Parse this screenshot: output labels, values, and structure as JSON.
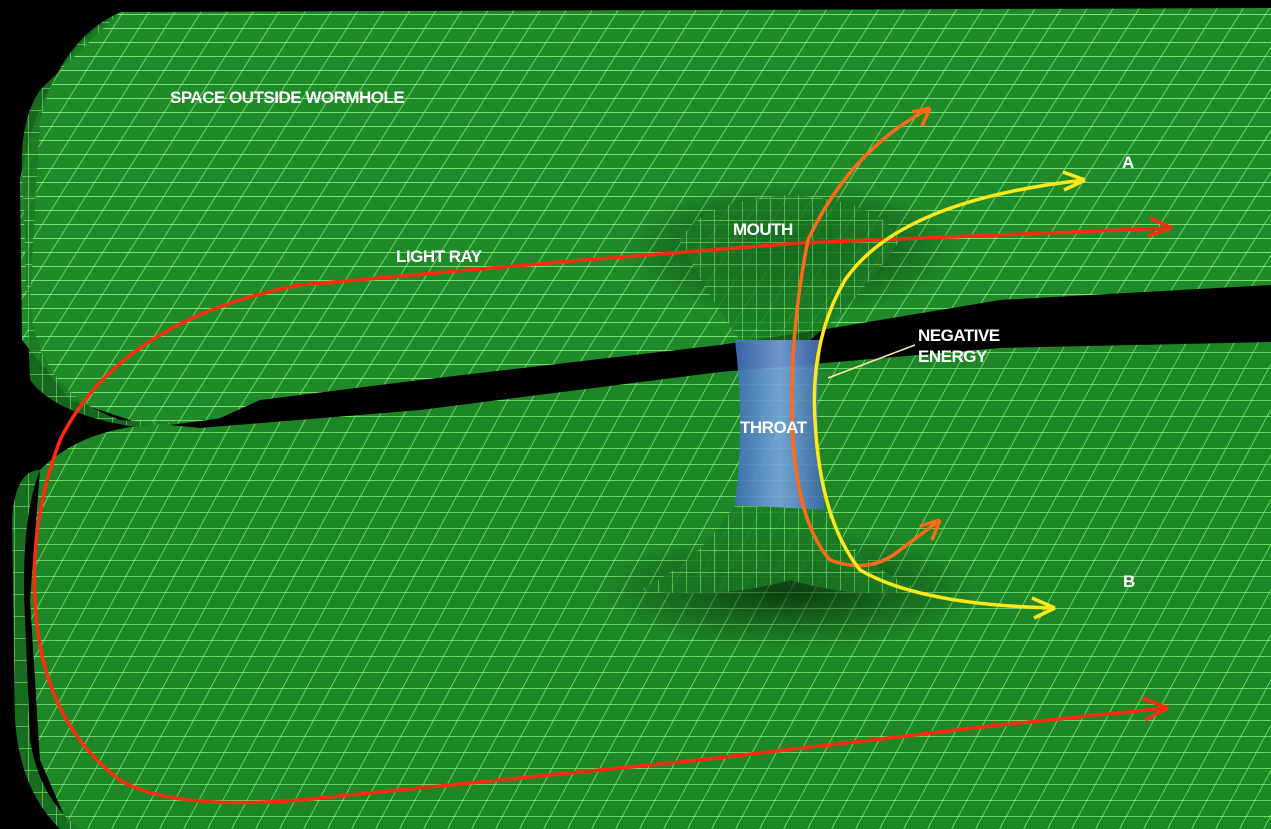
{
  "labels": {
    "space_outside": "SPACE OUTSIDE WORMHOLE",
    "light_ray": "LIGHT RAY",
    "mouth": "MOUTH",
    "negative_line1": "NEGATIVE",
    "negative_line2": "ENERGY",
    "throat": "THROAT",
    "point_a": "A",
    "point_b": "B"
  },
  "colors": {
    "background": "#000000",
    "sheet_fill": "#1f8a2a",
    "grid_line": "#8cf07a",
    "light_ray": "#ff2a10",
    "orange_ray": "#ff6a18",
    "yellow_ray": "#ffe81a",
    "throat": "#5a86c8"
  }
}
